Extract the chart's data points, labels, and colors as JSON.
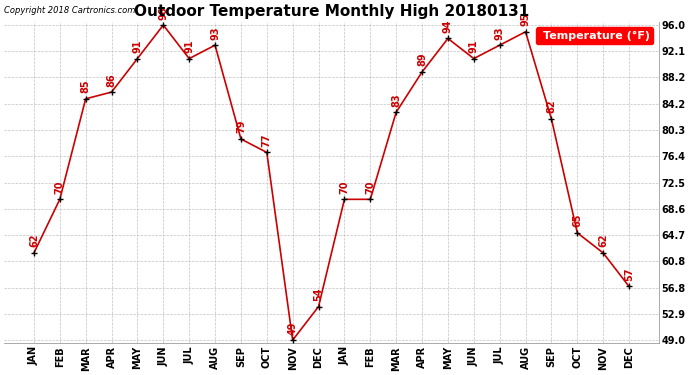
{
  "title": "Outdoor Temperature Monthly High 20180131",
  "copyright_text": "Copyright 2018 Cartronics.com",
  "legend_label": "Temperature (°F)",
  "categories": [
    "JAN",
    "FEB",
    "MAR",
    "APR",
    "MAY",
    "JUN",
    "JUL",
    "AUG",
    "SEP",
    "OCT",
    "NOV",
    "DEC",
    "JAN",
    "FEB",
    "MAR",
    "APR",
    "MAY",
    "JUN",
    "JUL",
    "AUG",
    "SEP",
    "OCT",
    "NOV",
    "DEC"
  ],
  "values": [
    62,
    70,
    85,
    86,
    91,
    96,
    91,
    93,
    79,
    77,
    49,
    54,
    70,
    70,
    83,
    89,
    94,
    91,
    93,
    95,
    82,
    65,
    62,
    57
  ],
  "ylim_min": 49.0,
  "ylim_max": 96.0,
  "yticks": [
    49.0,
    52.9,
    56.8,
    60.8,
    64.7,
    68.6,
    72.5,
    76.4,
    80.3,
    84.2,
    88.2,
    92.1,
    96.0
  ],
  "line_color": "#cc0000",
  "marker_color": "#000000",
  "label_color": "#cc0000",
  "bg_color": "#ffffff",
  "grid_color": "#bbbbbb",
  "title_fontsize": 11,
  "tick_fontsize": 7,
  "label_fontsize": 7,
  "copyright_fontsize": 6,
  "legend_fontsize": 8
}
